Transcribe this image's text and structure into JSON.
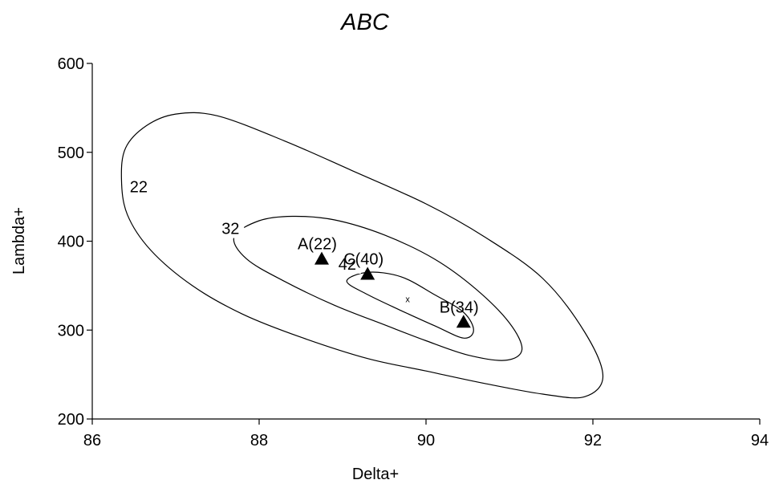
{
  "chart_data": {
    "type": "scatter",
    "title": "ABC",
    "xlabel": "Delta+",
    "ylabel": "Lambda+",
    "xlim": [
      86,
      94
    ],
    "ylim": [
      200,
      600
    ],
    "xticks": [
      "86",
      "88",
      "90",
      "92",
      "94"
    ],
    "yticks": [
      "200",
      "300",
      "400",
      "500",
      "600"
    ],
    "grid": false,
    "points": [
      {
        "label": "A(22)",
        "x": 88.75,
        "y": 380
      },
      {
        "label": "C(40)",
        "x": 89.3,
        "y": 363
      },
      {
        "label": "B(34)",
        "x": 90.45,
        "y": 309
      }
    ],
    "center": {
      "label": "x",
      "x": 89.78,
      "y": 335
    },
    "contours": [
      {
        "label": "22",
        "label_at": {
          "x": 86.45,
          "y": 455
        },
        "path": [
          [
            86.35,
            470
          ],
          [
            86.4,
            505
          ],
          [
            86.65,
            530
          ],
          [
            87.0,
            543
          ],
          [
            87.5,
            541
          ],
          [
            88.3,
            513
          ],
          [
            89.1,
            480
          ],
          [
            90.0,
            442
          ],
          [
            90.7,
            405
          ],
          [
            91.4,
            358
          ],
          [
            91.9,
            298
          ],
          [
            92.12,
            248
          ],
          [
            91.9,
            225
          ],
          [
            91.4,
            228
          ],
          [
            90.7,
            240
          ],
          [
            90.0,
            254
          ],
          [
            89.3,
            268
          ],
          [
            88.5,
            292
          ],
          [
            87.8,
            318
          ],
          [
            87.2,
            350
          ],
          [
            86.7,
            390
          ],
          [
            86.42,
            430
          ]
        ]
      },
      {
        "label": "32",
        "label_at": {
          "x": 87.55,
          "y": 408
        },
        "path": [
          [
            87.7,
            405
          ],
          [
            88.0,
            423
          ],
          [
            88.4,
            428
          ],
          [
            88.9,
            424
          ],
          [
            89.5,
            407
          ],
          [
            90.1,
            380
          ],
          [
            90.6,
            346
          ],
          [
            91.0,
            308
          ],
          [
            91.15,
            278
          ],
          [
            90.95,
            266
          ],
          [
            90.5,
            272
          ],
          [
            90.0,
            288
          ],
          [
            89.5,
            306
          ],
          [
            88.9,
            328
          ],
          [
            88.3,
            355
          ],
          [
            87.85,
            380
          ]
        ]
      },
      {
        "label": "42",
        "label_at": {
          "x": 88.95,
          "y": 368
        },
        "path": [
          [
            89.05,
            355
          ],
          [
            89.3,
            365
          ],
          [
            89.7,
            360
          ],
          [
            90.1,
            340
          ],
          [
            90.45,
            320
          ],
          [
            90.57,
            300
          ],
          [
            90.45,
            291
          ],
          [
            90.1,
            305
          ],
          [
            89.7,
            322
          ],
          [
            89.3,
            340
          ]
        ]
      }
    ]
  }
}
